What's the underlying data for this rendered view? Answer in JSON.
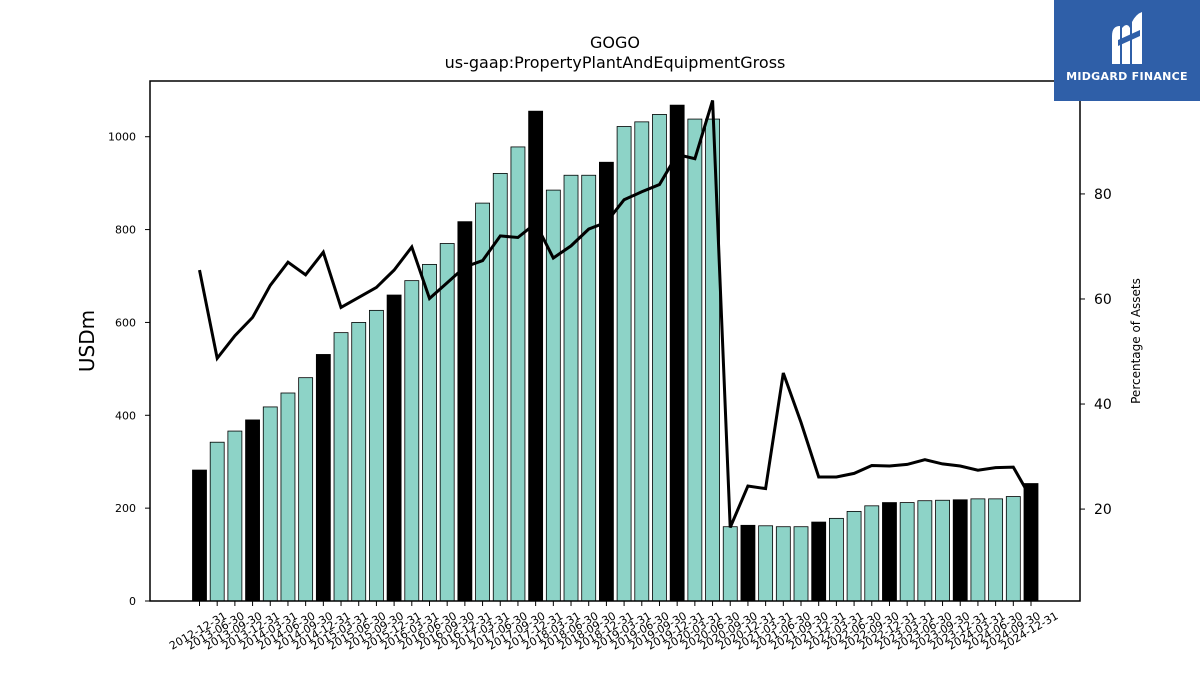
{
  "brand": {
    "name": "MIDGARD FINANCE",
    "logo_icon": "midgard-logo-icon",
    "color": "#2f5fa8"
  },
  "chart_data": {
    "type": "bar",
    "title": "GOGO",
    "subtitle": "us-gaap:PropertyPlantAndEquipmentGross",
    "ylabel": "USDm",
    "y2label": "Percentage of Assets",
    "ylim": [
      0,
      1120
    ],
    "y2lim": [
      2.5,
      101.5
    ],
    "yticks": [
      "0",
      "200",
      "400",
      "600",
      "800",
      "1000"
    ],
    "y2ticks": [
      "20",
      "40",
      "60",
      "80"
    ],
    "bar_color": "#8dd3c7",
    "highlight_color": "#000000",
    "line_color": "#000000",
    "grid": false,
    "categories": [
      "2012-12-31",
      "2013-06-30",
      "2013-09-30",
      "2013-12-31",
      "2014-03-31",
      "2014-06-30",
      "2014-09-30",
      "2014-12-31",
      "2015-03-31",
      "2015-06-30",
      "2015-09-30",
      "2015-12-31",
      "2016-03-31",
      "2016-06-30",
      "2016-09-30",
      "2016-12-31",
      "2017-03-31",
      "2017-06-30",
      "2017-09-30",
      "2017-12-31",
      "2018-03-31",
      "2018-06-30",
      "2018-09-30",
      "2018-12-31",
      "2019-03-31",
      "2019-06-30",
      "2019-09-30",
      "2019-12-31",
      "2020-03-31",
      "2020-06-30",
      "2020-09-30",
      "2020-12-31",
      "2021-03-31",
      "2021-06-30",
      "2021-09-30",
      "2021-12-31",
      "2022-03-31",
      "2022-06-30",
      "2022-09-30",
      "2022-12-31",
      "2023-03-31",
      "2023-06-30",
      "2023-09-30",
      "2023-12-31",
      "2024-03-31",
      "2024-06-30",
      "2024-09-30",
      "2024-12-31"
    ],
    "series": [
      {
        "kind": "bar",
        "axis": "left",
        "values": [
          282,
          342,
          366,
          390,
          418,
          448,
          481,
          531,
          578,
          600,
          626,
          659,
          690,
          725,
          770,
          817,
          857,
          921,
          978,
          1055,
          885,
          917,
          917,
          945,
          1022,
          1032,
          1048,
          1068,
          1038,
          1038,
          160,
          163,
          162,
          160,
          160,
          170,
          178,
          193,
          205,
          212,
          212,
          216,
          217,
          218,
          220,
          220,
          225,
          253
        ],
        "highlight": [
          true,
          false,
          false,
          true,
          false,
          false,
          false,
          true,
          false,
          false,
          false,
          true,
          false,
          false,
          false,
          true,
          false,
          false,
          false,
          true,
          false,
          false,
          false,
          true,
          false,
          false,
          false,
          true,
          false,
          false,
          false,
          true,
          false,
          false,
          false,
          true,
          false,
          false,
          false,
          true,
          false,
          false,
          false,
          true,
          false,
          false,
          false,
          true
        ]
      },
      {
        "kind": "line",
        "axis": "right",
        "values": [
          65.5,
          48.7,
          53.0,
          56.5,
          62.6,
          67.0,
          64.6,
          68.9,
          58.4,
          60.3,
          62.2,
          65.5,
          69.9,
          60.1,
          63.1,
          66.1,
          67.3,
          72.0,
          71.7,
          74.4,
          67.8,
          70.1,
          73.3,
          74.6,
          78.9,
          80.4,
          81.8,
          87.5,
          86.7,
          97.8,
          16.5,
          24.4,
          23.9,
          45.9,
          36.5,
          26.1,
          26.1,
          26.8,
          28.3,
          28.2,
          28.5,
          29.4,
          28.6,
          28.2,
          27.4,
          27.9,
          28.0,
          22.1
        ]
      }
    ]
  }
}
